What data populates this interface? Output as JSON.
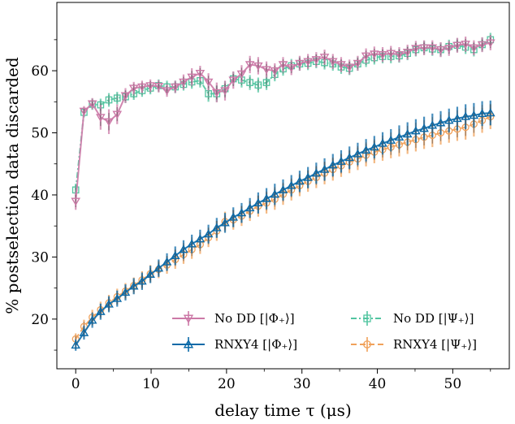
{
  "chart_data": {
    "type": "line",
    "title": "",
    "xlabel": "delay time τ (μs)",
    "ylabel": "% postselection data discarded",
    "xlim": [
      -2.5,
      57.5
    ],
    "ylim": [
      12,
      71
    ],
    "xticks": [
      0,
      10,
      20,
      30,
      40,
      50
    ],
    "yticks": [
      20,
      30,
      40,
      50,
      60
    ],
    "legend_position": "lower-right",
    "series": [
      {
        "name": "No DD [|Φ₊⟩]",
        "color": "#cc79a7",
        "linestyle": "solid",
        "marker": "triangle-down",
        "x": [
          0,
          1.1,
          2.2,
          3.3,
          4.4,
          5.5,
          6.6,
          7.7,
          8.8,
          9.9,
          11,
          12.1,
          13.2,
          14.3,
          15.4,
          16.5,
          17.6,
          18.7,
          19.8,
          20.9,
          22,
          23.1,
          24.2,
          25.3,
          26.4,
          27.5,
          28.6,
          29.7,
          30.8,
          31.9,
          33,
          34.1,
          35.2,
          36.3,
          37.4,
          38.5,
          39.6,
          40.7,
          41.8,
          42.9,
          44,
          45.1,
          46.2,
          47.3,
          48.4,
          49.5,
          50.6,
          51.7,
          52.8,
          53.9,
          55
        ],
        "y": [
          39,
          53.5,
          54.7,
          52.5,
          51.8,
          53,
          56,
          57.2,
          57.4,
          57.6,
          57.5,
          56.8,
          57.4,
          58.2,
          59,
          59.6,
          58.2,
          56.5,
          56.8,
          58.5,
          59.5,
          61,
          60.8,
          60.2,
          60,
          61,
          60.5,
          61.2,
          61.5,
          61.8,
          62.2,
          61.5,
          61,
          60.6,
          61.2,
          62.4,
          62.7,
          62.6,
          62.8,
          62.6,
          63,
          63.6,
          63.7,
          63.7,
          63.4,
          63.6,
          64.1,
          64.3,
          63.7,
          64.2,
          64.5
        ],
        "err": [
          1.4,
          0.8,
          0.9,
          2.0,
          2.0,
          1.6,
          1.2,
          1.0,
          1.0,
          1.0,
          1.0,
          1.0,
          1.0,
          1.2,
          1.4,
          1.2,
          1.4,
          1.6,
          1.6,
          1.4,
          1.4,
          1.4,
          1.4,
          1.3,
          1.2,
          1.2,
          1.2,
          1.2,
          1.2,
          1.2,
          1.2,
          1.2,
          1.2,
          1.2,
          1.2,
          1.2,
          1.2,
          1.2,
          1.2,
          1.2,
          1.2,
          1.2,
          1.2,
          1.2,
          1.2,
          1.2,
          1.2,
          1.2,
          1.2,
          1.2,
          1.2
        ]
      },
      {
        "name": "No DD [|Ψ₊⟩]",
        "color": "#52c5a0",
        "linestyle": "dashdot",
        "marker": "square",
        "x": [
          0,
          1.1,
          2.2,
          3.3,
          4.4,
          5.5,
          6.6,
          7.7,
          8.8,
          9.9,
          11,
          12.1,
          13.2,
          14.3,
          15.4,
          16.5,
          17.6,
          18.7,
          19.8,
          20.9,
          22,
          23.1,
          24.2,
          25.3,
          26.4,
          27.5,
          28.6,
          29.7,
          30.8,
          31.9,
          33,
          34.1,
          35.2,
          36.3,
          37.4,
          38.5,
          39.6,
          40.7,
          41.8,
          42.9,
          44,
          45.1,
          46.2,
          47.3,
          48.4,
          49.5,
          50.6,
          51.7,
          52.8,
          53.9,
          55
        ],
        "y": [
          40.8,
          53.3,
          54.6,
          54.5,
          55.3,
          55.6,
          55.8,
          56.3,
          56.8,
          57.2,
          57.6,
          57.4,
          57.4,
          57.8,
          58.2,
          58.4,
          56.3,
          56.3,
          57.1,
          58.7,
          58.5,
          58.1,
          57.7,
          58.1,
          59.4,
          60.3,
          60.8,
          61.1,
          61.2,
          61.5,
          61.3,
          61.1,
          60.6,
          60.4,
          61.1,
          61.7,
          62.1,
          62.3,
          62.3,
          62.4,
          62.8,
          63.4,
          63.7,
          63.5,
          63.4,
          63.9,
          64.1,
          63.8,
          63.4,
          64.2,
          65
        ],
        "err": [
          1.0,
          0.8,
          0.9,
          1.0,
          1.1,
          1.0,
          1.0,
          1.0,
          1.0,
          1.0,
          1.0,
          1.0,
          1.0,
          1.0,
          1.1,
          1.1,
          1.3,
          1.3,
          1.2,
          1.1,
          1.2,
          1.2,
          1.2,
          1.2,
          1.1,
          1.1,
          1.1,
          1.1,
          1.1,
          1.1,
          1.1,
          1.1,
          1.1,
          1.1,
          1.1,
          1.1,
          1.1,
          1.1,
          1.1,
          1.1,
          1.1,
          1.1,
          1.1,
          1.1,
          1.1,
          1.1,
          1.1,
          1.1,
          1.1,
          1.1,
          1.1
        ]
      },
      {
        "name": "RNXY4 [|Φ₊⟩]",
        "color": "#0b6aa8",
        "linestyle": "solid",
        "marker": "triangle-up",
        "x": [
          0,
          1.1,
          2.2,
          3.3,
          4.4,
          5.5,
          6.6,
          7.7,
          8.8,
          9.9,
          11,
          12.1,
          13.2,
          14.3,
          15.4,
          16.5,
          17.6,
          18.7,
          19.8,
          20.9,
          22,
          23.1,
          24.2,
          25.3,
          26.4,
          27.5,
          28.6,
          29.7,
          30.8,
          31.9,
          33,
          34.1,
          35.2,
          36.3,
          37.4,
          38.5,
          39.6,
          40.7,
          41.8,
          42.9,
          44,
          45.1,
          46.2,
          47.3,
          48.4,
          49.5,
          50.6,
          51.7,
          52.8,
          53.9,
          55
        ],
        "y": [
          15.8,
          17.8,
          19.8,
          21.2,
          22.4,
          23.3,
          24.3,
          25.3,
          26.1,
          27.2,
          28.2,
          29.2,
          30.2,
          31.2,
          32.1,
          32.9,
          33.7,
          34.7,
          35.5,
          36.4,
          37.1,
          37.9,
          38.7,
          39.4,
          40.1,
          40.8,
          41.5,
          42.2,
          42.8,
          43.5,
          44.1,
          44.8,
          45.4,
          46.0,
          46.6,
          47.2,
          47.7,
          48.3,
          48.8,
          49.3,
          49.8,
          50.3,
          50.7,
          51.2,
          51.6,
          52.0,
          52.3,
          52.6,
          52.8,
          53.1,
          53.2
        ],
        "err": [
          0.9,
          1.1,
          1.2,
          1.3,
          1.3,
          1.3,
          1.3,
          1.3,
          1.4,
          1.4,
          1.4,
          1.4,
          1.5,
          1.5,
          1.5,
          1.5,
          1.5,
          1.6,
          1.6,
          1.6,
          1.6,
          1.6,
          1.7,
          1.7,
          1.7,
          1.7,
          1.7,
          1.7,
          1.7,
          1.7,
          1.8,
          1.8,
          1.8,
          1.8,
          1.8,
          1.8,
          1.8,
          1.8,
          1.8,
          1.9,
          1.9,
          1.9,
          1.9,
          1.9,
          1.9,
          1.9,
          1.9,
          2.0,
          2.0,
          2.0,
          2.0
        ]
      },
      {
        "name": "RNXY4 [|Ψ₊⟩]",
        "color": "#f0a15a",
        "linestyle": "dashed",
        "marker": "circle",
        "x": [
          0,
          1.1,
          2.2,
          3.3,
          4.4,
          5.5,
          6.6,
          7.7,
          8.8,
          9.9,
          11,
          12.1,
          13.2,
          14.3,
          15.4,
          16.5,
          17.6,
          18.7,
          19.8,
          20.9,
          22,
          23.1,
          24.2,
          25.3,
          26.4,
          27.5,
          28.6,
          29.7,
          30.8,
          31.9,
          33,
          34.1,
          35.2,
          36.3,
          37.4,
          38.5,
          39.6,
          40.7,
          41.8,
          42.9,
          44,
          45.1,
          46.2,
          47.3,
          48.4,
          49.5,
          50.6,
          51.7,
          52.8,
          53.9,
          55
        ],
        "y": [
          16.8,
          18.8,
          20.3,
          21.5,
          22.6,
          23.6,
          24.5,
          25.4,
          26.3,
          27.3,
          28.0,
          28.7,
          29.6,
          30.4,
          31.2,
          32.0,
          33.1,
          34.2,
          35.7,
          36.0,
          36.6,
          37.4,
          38.2,
          38.7,
          39.3,
          40.1,
          40.8,
          41.5,
          42.2,
          42.8,
          43.5,
          44.1,
          44.7,
          45.3,
          45.8,
          46.4,
          46.9,
          47.3,
          47.7,
          48.1,
          48.5,
          48.9,
          49.3,
          49.6,
          50.0,
          50.3,
          50.6,
          50.9,
          51.4,
          52.0,
          52.6
        ],
        "err": [
          0.9,
          1.1,
          1.2,
          1.3,
          1.3,
          1.3,
          1.3,
          1.3,
          1.4,
          1.4,
          1.4,
          1.4,
          1.5,
          1.5,
          1.5,
          1.5,
          1.5,
          1.6,
          1.6,
          1.6,
          1.6,
          1.6,
          1.7,
          1.7,
          1.7,
          1.7,
          1.7,
          1.7,
          1.7,
          1.7,
          1.8,
          1.8,
          1.8,
          1.8,
          1.8,
          1.8,
          1.8,
          1.8,
          1.8,
          1.9,
          1.9,
          1.9,
          1.9,
          1.9,
          1.9,
          1.9,
          1.9,
          2.0,
          2.0,
          2.0,
          2.0
        ]
      }
    ],
    "legend_order": [
      0,
      2,
      1,
      3
    ],
    "errorbar_color": "#4a4a4a"
  }
}
